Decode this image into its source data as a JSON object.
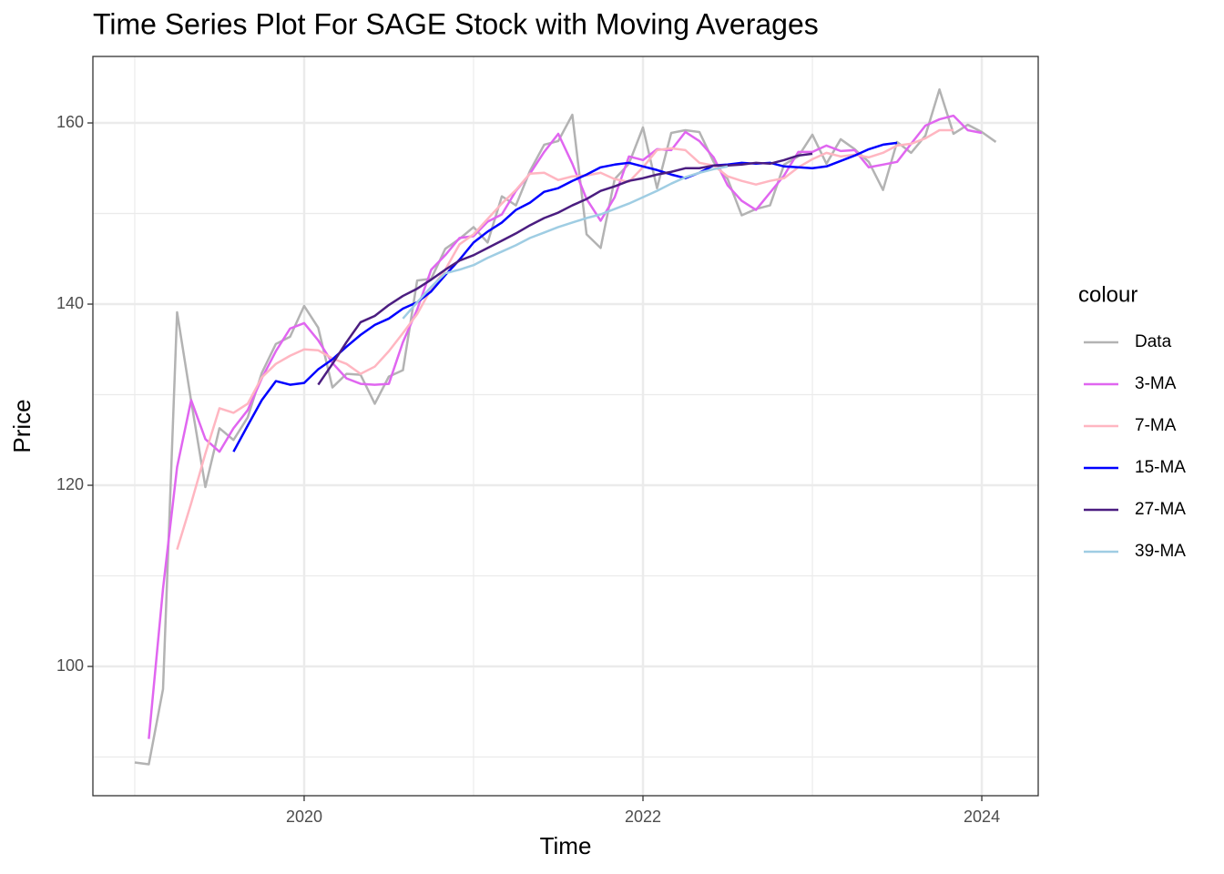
{
  "chart_data": {
    "type": "line",
    "title": "Time Series Plot For SAGE Stock with Moving Averages",
    "x_label": "Time",
    "y_label": "Price",
    "legend_title": "colour",
    "x": [
      2019,
      2019.083,
      2019.167,
      2019.25,
      2019.333,
      2019.417,
      2019.5,
      2019.583,
      2019.667,
      2019.75,
      2019.833,
      2019.917,
      2020,
      2020.083,
      2020.167,
      2020.25,
      2020.333,
      2020.417,
      2020.5,
      2020.583,
      2020.667,
      2020.75,
      2020.833,
      2020.917,
      2021,
      2021.083,
      2021.167,
      2021.25,
      2021.333,
      2021.417,
      2021.5,
      2021.583,
      2021.667,
      2021.75,
      2021.833,
      2021.917,
      2022,
      2022.083,
      2022.167,
      2022.25,
      2022.333,
      2022.417,
      2022.5,
      2022.583,
      2022.667,
      2022.75,
      2022.833,
      2022.917,
      2023,
      2023.083,
      2023.167,
      2023.25,
      2023.333,
      2023.417,
      2023.5,
      2023.583,
      2023.667,
      2023.75,
      2023.833,
      2023.917,
      2024,
      2024.083
    ],
    "series": [
      {
        "name": "Data",
        "color": "#b3b3b3",
        "values": [
          89.4,
          89.2,
          97.5,
          139.1,
          129.3,
          119.8,
          126.3,
          125.0,
          127.5,
          132.4,
          135.6,
          136.4,
          139.8,
          137.4,
          130.8,
          132.3,
          132.2,
          129.0,
          132.0,
          132.7,
          142.6,
          142.8,
          146.1,
          147.2,
          148.5,
          146.8,
          151.9,
          150.9,
          154.7,
          157.6,
          158.0,
          160.9,
          147.7,
          146.2,
          153.8,
          155.5,
          159.5,
          152.8,
          158.9,
          159.2,
          159.0,
          155.7,
          153.8,
          149.8,
          150.5,
          150.9,
          155.4,
          156.3,
          158.7,
          155.5,
          158.2,
          157.1,
          155.7,
          152.6,
          157.9,
          156.7,
          158.6,
          163.7,
          158.8,
          159.8,
          159.0,
          157.9
        ]
      },
      {
        "name": "3-MA",
        "color": "#e066f0",
        "values": [
          null,
          92.0,
          108.6,
          122.0,
          129.4,
          125.1,
          123.7,
          126.3,
          128.3,
          131.8,
          134.8,
          137.3,
          137.9,
          136.0,
          133.5,
          131.8,
          131.2,
          131.1,
          131.2,
          135.8,
          139.4,
          143.8,
          145.4,
          147.3,
          147.5,
          149.1,
          149.9,
          152.5,
          154.4,
          156.8,
          158.8,
          155.5,
          151.6,
          149.2,
          151.8,
          156.3,
          155.9,
          157.1,
          157.0,
          159.0,
          158.0,
          156.2,
          153.1,
          151.4,
          150.4,
          152.3,
          154.2,
          156.8,
          156.8,
          157.5,
          156.9,
          157.0,
          155.1,
          155.4,
          155.7,
          157.7,
          159.7,
          160.4,
          160.8,
          159.2,
          158.9,
          null
        ]
      },
      {
        "name": "7-MA",
        "color": "#ffb6c1",
        "values": [
          null,
          null,
          null,
          112.9,
          118.0,
          123.5,
          128.5,
          128.0,
          129.0,
          131.9,
          133.4,
          134.3,
          135.0,
          134.9,
          134.0,
          133.4,
          132.3,
          133.1,
          134.8,
          136.8,
          138.9,
          141.7,
          143.8,
          146.6,
          147.7,
          149.4,
          151.1,
          152.6,
          154.4,
          154.5,
          153.7,
          154.1,
          154.2,
          154.5,
          153.8,
          153.5,
          155.1,
          157.0,
          157.2,
          157.0,
          155.6,
          155.3,
          154.1,
          153.6,
          153.2,
          153.6,
          153.9,
          155.1,
          156.0,
          156.7,
          156.3,
          156.5,
          156.2,
          156.7,
          157.5,
          157.7,
          158.3,
          159.2,
          159.2,
          null,
          null,
          null
        ]
      },
      {
        "name": "15-MA",
        "color": "#0000ff",
        "values": [
          null,
          null,
          null,
          null,
          null,
          null,
          null,
          123.7,
          126.6,
          129.4,
          131.5,
          131.1,
          131.3,
          132.8,
          133.9,
          135.3,
          136.6,
          137.7,
          138.4,
          139.5,
          140.2,
          141.4,
          143.2,
          144.9,
          146.8,
          148.0,
          149.0,
          150.4,
          151.2,
          152.4,
          152.8,
          153.6,
          154.3,
          155.1,
          155.4,
          155.6,
          155.2,
          154.8,
          154.3,
          153.9,
          154.5,
          155.3,
          155.4,
          155.6,
          155.5,
          155.6,
          155.2,
          155.1,
          155.0,
          155.2,
          155.8,
          156.4,
          157.1,
          157.6,
          157.8,
          null,
          null,
          null,
          null,
          null,
          null,
          null
        ]
      },
      {
        "name": "27-MA",
        "color": "#4b1d80",
        "values": [
          null,
          null,
          null,
          null,
          null,
          null,
          null,
          null,
          null,
          null,
          null,
          null,
          null,
          131.1,
          133.4,
          135.8,
          138.0,
          138.7,
          139.9,
          140.9,
          141.7,
          142.7,
          143.8,
          144.8,
          145.4,
          146.2,
          147.0,
          147.8,
          148.7,
          149.5,
          150.1,
          150.9,
          151.6,
          152.5,
          153.0,
          153.6,
          153.9,
          154.3,
          154.6,
          155.0,
          155.0,
          155.3,
          155.3,
          155.4,
          155.6,
          155.5,
          155.9,
          156.4,
          156.6,
          null,
          null,
          null,
          null,
          null,
          null,
          null,
          null,
          null,
          null,
          null,
          null,
          null
        ]
      },
      {
        "name": "39-MA",
        "color": "#9fcde3",
        "values": [
          null,
          null,
          null,
          null,
          null,
          null,
          null,
          null,
          null,
          null,
          null,
          null,
          null,
          null,
          null,
          null,
          null,
          null,
          null,
          138.4,
          140.2,
          141.9,
          143.4,
          143.8,
          144.3,
          145.1,
          145.8,
          146.5,
          147.3,
          147.9,
          148.5,
          149.0,
          149.5,
          149.9,
          150.5,
          151.1,
          151.8,
          152.5,
          153.3,
          154.0,
          154.5,
          154.9,
          155.2,
          null,
          null,
          null,
          null,
          null,
          null,
          null,
          null,
          null,
          null,
          null,
          null,
          null,
          null,
          null,
          null,
          null,
          null,
          null
        ]
      }
    ],
    "xlim": [
      2018.753,
      2024.333
    ],
    "ylim": [
      85.73,
      167.34
    ],
    "xticks": [
      2020,
      2022,
      2024
    ],
    "yticks": [
      100,
      120,
      140,
      160
    ],
    "xminor": [
      2019,
      2021,
      2023
    ],
    "yminor": [
      90,
      110,
      130,
      150
    ],
    "grid": true,
    "legend": "right"
  }
}
